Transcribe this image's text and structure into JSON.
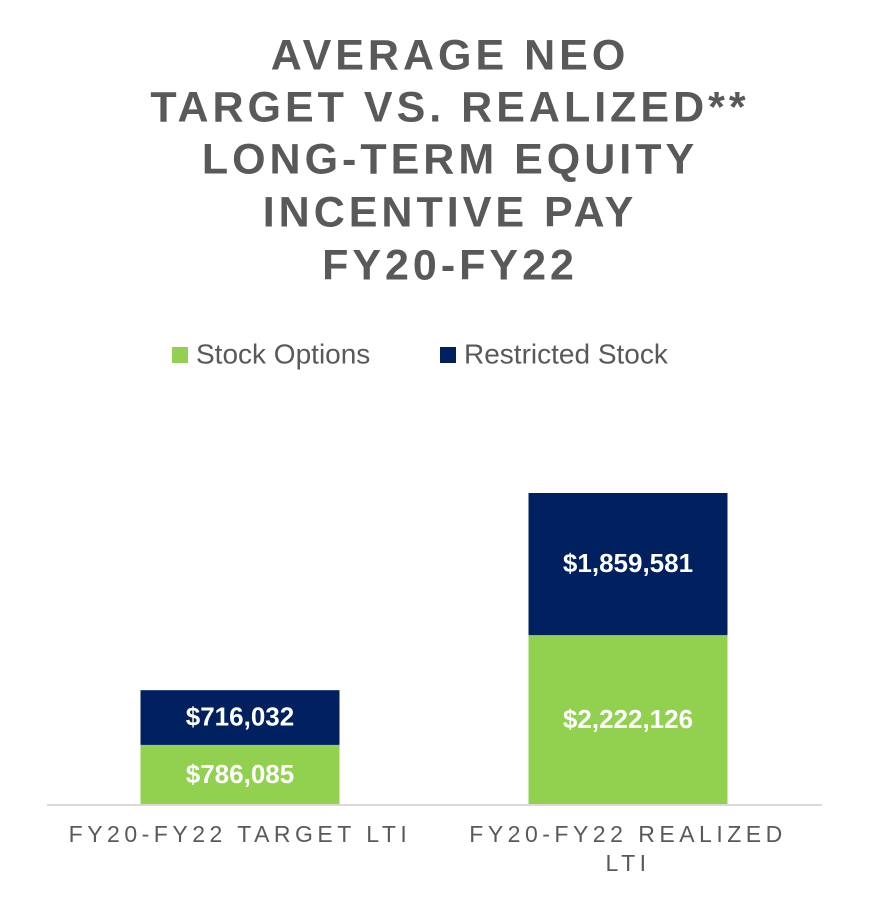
{
  "chart_data": {
    "type": "stacked-bar",
    "title": [
      "AVERAGE NEO",
      "TARGET VS. REALIZED**",
      "LONG-TERM EQUITY",
      "INCENTIVE PAY",
      "FY20-FY22"
    ],
    "categories": [
      "FY20-FY22 TARGET LTI",
      "FY20-FY22 REALIZED LTI"
    ],
    "series": [
      {
        "name": "Stock Options",
        "color": "#92d050",
        "values": [
          786085,
          2222126
        ],
        "value_labels": [
          "$786,085",
          "$2,222,126"
        ]
      },
      {
        "name": "Restricted Stock",
        "color": "#002060",
        "values": [
          716032,
          1859581
        ],
        "value_labels": [
          "$716,032",
          "$1,859,581"
        ]
      }
    ]
  }
}
